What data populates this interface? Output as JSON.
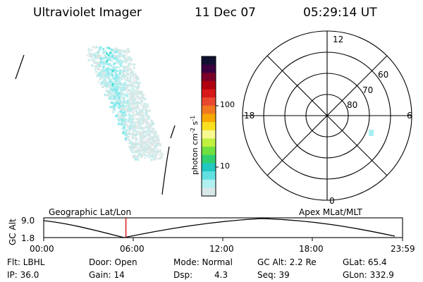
{
  "header": {
    "instrument": "Ultraviolet Imager",
    "date": "11 Dec 07",
    "time": "05:29:14 UT"
  },
  "colorbar": {
    "unit_main": "photon cm",
    "unit_sup1": "-2",
    "unit_mid": "s",
    "unit_sup2": "-1",
    "tick_labels": [
      "100",
      "10"
    ],
    "colors": [
      "#101030",
      "#3a0040",
      "#7a0028",
      "#b00010",
      "#d81818",
      "#e84830",
      "#f07820",
      "#f8a800",
      "#f8e020",
      "#f8f890",
      "#c0f040",
      "#70e040",
      "#30d070",
      "#20c8c0",
      "#60e0e0",
      "#b0f0f0",
      "#d8e8e8"
    ]
  },
  "polar": {
    "labels": [
      "12",
      "18",
      "6",
      "0",
      "60",
      "70",
      "80"
    ]
  },
  "timeline": {
    "y_axis_label": "GC Alt",
    "y_ticks": [
      "9.0",
      "1.8"
    ],
    "left_label": "Geographic Lat/Lon",
    "right_label": "Apex  MLat/MLT",
    "x_ticks": [
      "00:00",
      "06:00",
      "12:00",
      "18:00",
      "23:59"
    ],
    "marker_color": "#d00000",
    "marker_fraction": 0.229
  },
  "footer": {
    "flt": "Flt: LBHL",
    "ip": "IP: 36.0",
    "door": "Door: Open",
    "gain": "Gain: 14",
    "mode": "Mode: Normal",
    "dsp_label": "Dsp:",
    "dsp_value": "4.3",
    "gc_alt": "GC Alt: 2.2 Re",
    "seq": "Seq: 39",
    "glat": "GLat:  65.4",
    "glon": "GLon: 332.9"
  }
}
